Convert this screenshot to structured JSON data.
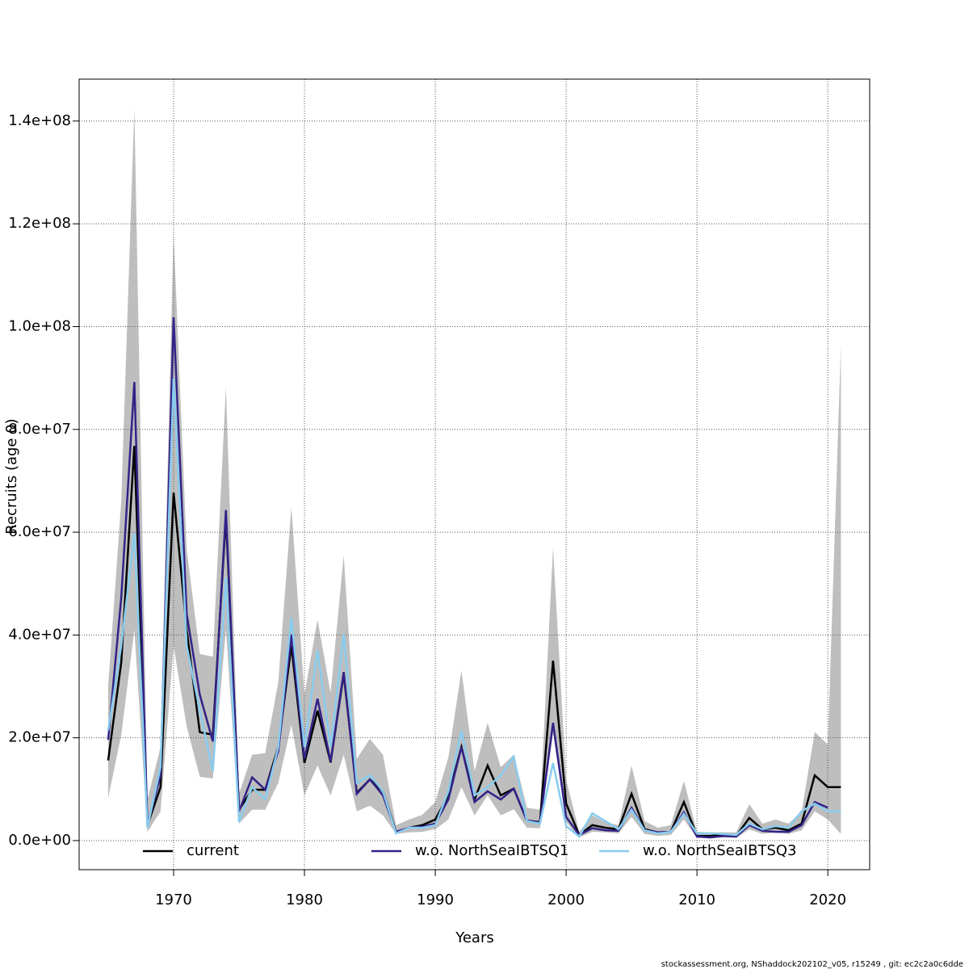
{
  "chart_data": {
    "type": "line",
    "xlabel": "Years",
    "ylabel": "Recruits (age 0)",
    "footer": "stockassessment.org, NShaddock202102_v05, r15249 , git: ec2c2a0c6dde",
    "x": [
      1965,
      1966,
      1967,
      1968,
      1969,
      1970,
      1971,
      1972,
      1973,
      1974,
      1975,
      1976,
      1977,
      1978,
      1979,
      1980,
      1981,
      1982,
      1983,
      1984,
      1985,
      1986,
      1987,
      1988,
      1989,
      1990,
      1991,
      1992,
      1993,
      1994,
      1995,
      1996,
      1997,
      1998,
      1999,
      2000,
      2001,
      2002,
      2003,
      2004,
      2005,
      2006,
      2007,
      2008,
      2009,
      2010,
      2011,
      2012,
      2013,
      2014,
      2015,
      2016,
      2017,
      2018,
      2019,
      2020,
      2021
    ],
    "band": {
      "color": "#bebebe",
      "upper": [
        30000000.0,
        66100000.0,
        142600000.0,
        8000000.0,
        18200000.0,
        118300000.0,
        56700000.0,
        36300000.0,
        35800000.0,
        88400000.0,
        9100000.0,
        16700000.0,
        17000000.0,
        30800000.0,
        64900000.0,
        28400000.0,
        43000000.0,
        28700000.0,
        55500000.0,
        15900000.0,
        19800000.0,
        16700000.0,
        3000000.0,
        4100000.0,
        5000000.0,
        7500000.0,
        16200000.0,
        33100000.0,
        13500000.0,
        22900000.0,
        14300000.0,
        16700000.0,
        6400000.0,
        6000000.0,
        57000000.0,
        11900000.0,
        1700000.0,
        4900000.0,
        3600000.0,
        3000000.0,
        14600000.0,
        3800000.0,
        2500000.0,
        3000000.0,
        11600000.0,
        1700000.0,
        1600000.0,
        1600000.0,
        1600000.0,
        7100000.0,
        3300000.0,
        4100000.0,
        3300000.0,
        5700000.0,
        21100000.0,
        18700000.0,
        96300000.0
      ],
      "lower": [
        8300000.0,
        20600000.0,
        41000000.0,
        1700000.0,
        5700000.0,
        37900000.0,
        22200000.0,
        12400000.0,
        12100000.0,
        41000000.0,
        3300000.0,
        6000000.0,
        6000000.0,
        11200000.0,
        22500000.0,
        8800000.0,
        14600000.0,
        8800000.0,
        16700000.0,
        5700000.0,
        6800000.0,
        4900000.0,
        1300000.0,
        1600000.0,
        1700000.0,
        2200000.0,
        4100000.0,
        10400000.0,
        4900000.0,
        8800000.0,
        4900000.0,
        6100000.0,
        2500000.0,
        2400000.0,
        20900000.0,
        3600000.0,
        600000.0,
        1700000.0,
        1600000.0,
        1400000.0,
        4600000.0,
        1300000.0,
        900000.0,
        1100000.0,
        4100000.0,
        500000.0,
        500000.0,
        600000.0,
        500000.0,
        2200000.0,
        1300000.0,
        1600000.0,
        1300000.0,
        2000000.0,
        5700000.0,
        4100000.0,
        1300000.0
      ]
    },
    "series": [
      {
        "name": "current",
        "color": "#000000",
        "values": [
          15600000.0,
          34700000.0,
          76800000.0,
          3000000.0,
          10400000.0,
          67700000.0,
          41000000.0,
          21100000.0,
          20600000.0,
          63000000.0,
          6000000.0,
          9900000.0,
          9900000.0,
          18200000.0,
          37900000.0,
          15100000.0,
          25300000.0,
          15200000.0,
          32400000.0,
          9300000.0,
          11900000.0,
          9600000.0,
          1700000.0,
          2500000.0,
          3000000.0,
          4100000.0,
          8800000.0,
          18200000.0,
          8000000.0,
          14600000.0,
          8800000.0,
          10100000.0,
          3900000.0,
          3600000.0,
          35000000.0,
          7200000.0,
          1100000.0,
          3000000.0,
          2500000.0,
          2200000.0,
          9100000.0,
          2200000.0,
          1600000.0,
          1700000.0,
          7500000.0,
          900000.0,
          900000.0,
          1100000.0,
          900000.0,
          4400000.0,
          2200000.0,
          2500000.0,
          2000000.0,
          3300000.0,
          12700000.0,
          10400000.0,
          10400000.0
        ]
      },
      {
        "name": "w.o. NorthSeaIBTSQ1",
        "color": "#332288",
        "values": [
          19600000.0,
          47300000.0,
          89200000.0,
          3000000.0,
          12700000.0,
          101800000.0,
          44100000.0,
          28400000.0,
          19300000.0,
          64300000.0,
          5700000.0,
          12300000.0,
          9900000.0,
          17400000.0,
          40100000.0,
          15900000.0,
          27600000.0,
          15400000.0,
          32800000.0,
          9100000.0,
          11900000.0,
          8800000.0,
          1700000.0,
          2500000.0,
          2700000.0,
          3300000.0,
          8000000.0,
          18200000.0,
          7500000.0,
          9600000.0,
          8000000.0,
          10100000.0,
          3900000.0,
          3500000.0,
          22900000.0,
          4600000.0,
          1100000.0,
          2400000.0,
          2000000.0,
          1900000.0,
          6400000.0,
          2000000.0,
          1600000.0,
          1700000.0,
          5500000.0,
          800000.0,
          600000.0,
          900000.0,
          800000.0,
          3000000.0,
          1900000.0,
          1700000.0,
          1700000.0,
          3000000.0,
          7500000.0,
          6400000.0,
          null
        ]
      },
      {
        "name": "w.o. NorthSeaIBTSQ3",
        "color": "#88ccee",
        "values": [
          21400000.0,
          37900000.0,
          59900000.0,
          2500000.0,
          14300000.0,
          90000000.0,
          37900000.0,
          25300000.0,
          13500000.0,
          51200000.0,
          3600000.0,
          10400000.0,
          8000000.0,
          18200000.0,
          43400000.0,
          18200000.0,
          37100000.0,
          18200000.0,
          40200000.0,
          11200000.0,
          12700000.0,
          9600000.0,
          1400000.0,
          2500000.0,
          2500000.0,
          3000000.0,
          9600000.0,
          21400000.0,
          8800000.0,
          10400000.0,
          12700000.0,
          16300000.0,
          3800000.0,
          3300000.0,
          15100000.0,
          2800000.0,
          800000.0,
          5300000.0,
          3800000.0,
          2200000.0,
          6000000.0,
          2000000.0,
          1400000.0,
          1700000.0,
          5200000.0,
          1400000.0,
          1400000.0,
          1300000.0,
          1100000.0,
          3300000.0,
          2200000.0,
          2800000.0,
          2500000.0,
          5700000.0,
          7200000.0,
          5700000.0,
          5700000.0
        ]
      }
    ],
    "xlim": [
      1962.78,
      2023.2
    ],
    "ylim": [
      -5660000,
      148150000
    ],
    "xticks": [
      1970,
      1980,
      1990,
      2000,
      2010,
      2020
    ],
    "yticks": [
      {
        "value": 0,
        "label": "0.0e+00"
      },
      {
        "value": 20000000,
        "label": "2.0e+07"
      },
      {
        "value": 40000000,
        "label": "4.0e+07"
      },
      {
        "value": 60000000,
        "label": "6.0e+07"
      },
      {
        "value": 80000000,
        "label": "8.0e+07"
      },
      {
        "value": 100000000,
        "label": "1.0e+08"
      },
      {
        "value": 120000000,
        "label": "1.2e+08"
      },
      {
        "value": 140000000,
        "label": "1.4e+08"
      }
    ],
    "grid": true,
    "legend": "bottom"
  }
}
